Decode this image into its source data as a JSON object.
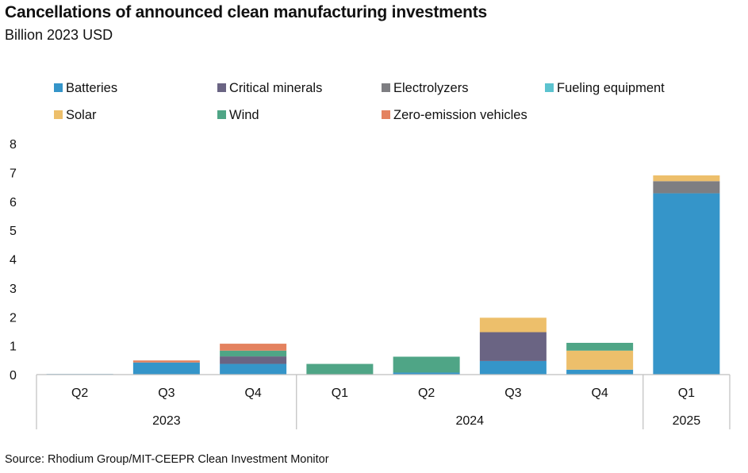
{
  "header": {
    "title": "Cancellations of announced clean manufacturing investments",
    "subtitle": "Billion 2023 USD"
  },
  "footer": {
    "source": "Source: Rhodium Group/MIT-CEEPR Clean Investment Monitor"
  },
  "chart_data": {
    "type": "bar",
    "stacked": true,
    "title": "Cancellations of announced clean manufacturing investments",
    "subtitle": "Billion 2023 USD",
    "xlabel": "",
    "ylabel": "",
    "ylim": [
      0,
      8
    ],
    "yticks": [
      "0",
      "1",
      "2",
      "3",
      "4",
      "5",
      "6",
      "7",
      "8"
    ],
    "grid": false,
    "legend_position": "top",
    "categories": [
      "Q2",
      "Q3",
      "Q4",
      "Q1",
      "Q2",
      "Q3",
      "Q4",
      "Q1"
    ],
    "groups": [
      {
        "label": "2023",
        "count": 3
      },
      {
        "label": "2024",
        "count": 4
      },
      {
        "label": "2025",
        "count": 1
      }
    ],
    "series": [
      {
        "name": "Batteries",
        "color": "#3595c9",
        "values": [
          0.02,
          0.42,
          0.37,
          0.0,
          0.07,
          0.47,
          0.17,
          6.28
        ]
      },
      {
        "name": "Critical minerals",
        "color": "#6a6483",
        "values": [
          0.0,
          0.0,
          0.26,
          0.0,
          0.0,
          1.0,
          0.0,
          0.0
        ]
      },
      {
        "name": "Electrolyzers",
        "color": "#7e7e82",
        "values": [
          0.0,
          0.0,
          0.0,
          0.0,
          0.0,
          0.0,
          0.0,
          0.42
        ]
      },
      {
        "name": "Fueling equipment",
        "color": "#5cc3cf",
        "values": [
          0.0,
          0.0,
          0.0,
          0.0,
          0.0,
          0.0,
          0.0,
          0.0
        ]
      },
      {
        "name": "Solar",
        "color": "#edbf6b",
        "values": [
          0.0,
          0.0,
          0.0,
          0.0,
          0.0,
          0.5,
          0.66,
          0.2
        ]
      },
      {
        "name": "Wind",
        "color": "#4fa586",
        "values": [
          0.0,
          0.0,
          0.2,
          0.37,
          0.55,
          0.0,
          0.27,
          0.0
        ]
      },
      {
        "name": "Zero-emission vehicles",
        "color": "#e4825f",
        "values": [
          0.0,
          0.07,
          0.24,
          0.0,
          0.0,
          0.0,
          0.0,
          0.0
        ]
      }
    ]
  }
}
